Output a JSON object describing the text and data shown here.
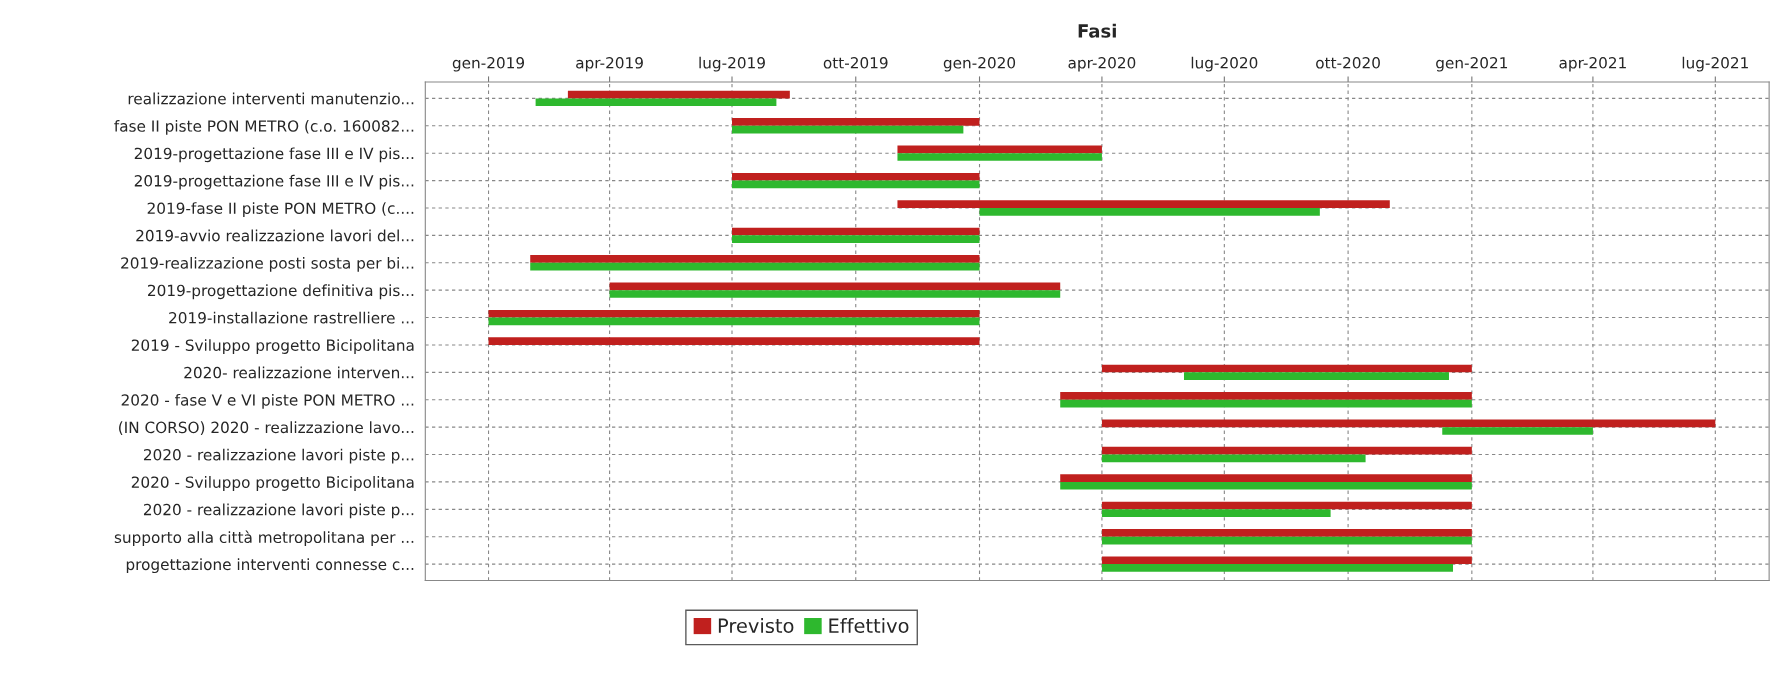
{
  "chart_data": {
    "type": "bar",
    "orientation": "horizontal",
    "title": "Fasi",
    "categories": [
      "realizzazione interventi manutenzio...",
      "fase II piste PON METRO (c.o. 160082...",
      "2019-progettazione fase III e IV pis...",
      "2019-progettazione fase III e IV pis...",
      "2019-fase II piste PON METRO (c....",
      "2019-avvio realizzazione lavori del...",
      "2019-realizzazione posti sosta per bi...",
      "2019-progettazione definitiva pis...",
      "2019-installazione rastrelliere ...",
      "2019 - Sviluppo progetto Bicipolitana",
      "2020- realizzazione interven...",
      "2020 - fase V e VI piste PON METRO ...",
      "(IN CORSO) 2020 - realizzazione lavo...",
      "2020 - realizzazione lavori piste p...",
      "2020 - Sviluppo progetto Bicipolitana",
      "2020 - realizzazione lavori piste p...",
      "supporto alla città metropolitana per ...",
      "progettazione interventi connesse c..."
    ],
    "series": [
      {
        "name": "Previsto",
        "color": "#c0201e",
        "base": [
          17956,
          18078,
          18201,
          18078,
          18201,
          18078,
          17928,
          17987,
          17897,
          17897,
          18353,
          18322,
          18353,
          18353,
          18322,
          18353,
          18353,
          18353
        ],
        "values": [
          165,
          184,
          152,
          184,
          366,
          184,
          334,
          335,
          365,
          365,
          275,
          306,
          456,
          275,
          306,
          275,
          275,
          275
        ]
      },
      {
        "name": "Effettivo",
        "color": "#2eb82e",
        "base": [
          17932,
          18078,
          18201,
          18078,
          18262,
          18078,
          17928,
          17987,
          17897,
          null,
          18414,
          18322,
          18606,
          18353,
          18322,
          18353,
          18353,
          18353
        ],
        "values": [
          179,
          172,
          152,
          184,
          253,
          184,
          334,
          335,
          365,
          null,
          197,
          306,
          112,
          196,
          306,
          170,
          275,
          261
        ]
      }
    ],
    "xlim": [
      "2018-11-15",
      "2021-08-10"
    ],
    "xticks": [
      {
        "value": "2019-01-01",
        "label": "gen-2019"
      },
      {
        "value": "2019-04-01",
        "label": "apr-2019"
      },
      {
        "value": "2019-07-01",
        "label": "lug-2019"
      },
      {
        "value": "2019-10-01",
        "label": "ott-2019"
      },
      {
        "value": "2020-01-01",
        "label": "gen-2020"
      },
      {
        "value": "2020-04-01",
        "label": "apr-2020"
      },
      {
        "value": "2020-07-01",
        "label": "lug-2020"
      },
      {
        "value": "2020-10-01",
        "label": "ott-2020"
      },
      {
        "value": "2021-01-01",
        "label": "gen-2021"
      },
      {
        "value": "2021-04-01",
        "label": "apr-2021"
      },
      {
        "value": "2021-07-01",
        "label": "lug-2021"
      }
    ],
    "grid": true,
    "legend": "bottom"
  }
}
